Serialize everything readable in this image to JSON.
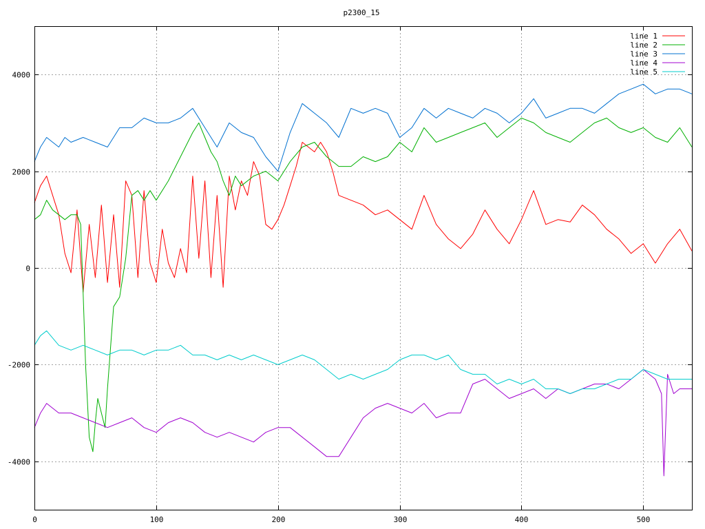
{
  "chart_data": {
    "type": "line",
    "title": "p2300_15",
    "xlabel": "",
    "ylabel": "",
    "xlim": [
      0,
      540
    ],
    "ylim": [
      -5000,
      5000
    ],
    "grid": true,
    "legend_position": "top-right",
    "x_ticks": [
      0,
      100,
      200,
      300,
      400,
      500
    ],
    "y_ticks": [
      -4000,
      -2000,
      0,
      2000,
      4000
    ],
    "x_tick_labels": [
      "0",
      "100",
      "200",
      "300",
      "400",
      "500"
    ],
    "y_tick_labels": [
      "-4000",
      "-2000",
      "0",
      "2000",
      "4000"
    ],
    "series": [
      {
        "name": "line 1",
        "color": "#ff0000",
        "x": [
          0,
          5,
          10,
          15,
          20,
          25,
          30,
          35,
          40,
          45,
          50,
          55,
          60,
          65,
          70,
          75,
          80,
          85,
          90,
          95,
          100,
          105,
          110,
          115,
          120,
          125,
          130,
          135,
          140,
          145,
          150,
          155,
          160,
          165,
          170,
          175,
          180,
          185,
          190,
          195,
          200,
          205,
          210,
          215,
          220,
          225,
          230,
          235,
          240,
          245,
          250,
          260,
          270,
          280,
          290,
          300,
          310,
          320,
          330,
          340,
          350,
          360,
          370,
          380,
          390,
          400,
          410,
          420,
          430,
          440,
          450,
          460,
          470,
          480,
          490,
          500,
          510,
          520,
          530,
          540
        ],
        "values": [
          1350,
          1700,
          1900,
          1500,
          1100,
          300,
          -100,
          1200,
          -500,
          900,
          -200,
          1300,
          -300,
          1100,
          -400,
          1800,
          1500,
          -200,
          1600,
          100,
          -300,
          800,
          100,
          -200,
          400,
          -100,
          1900,
          200,
          1800,
          -200,
          1500,
          -400,
          1900,
          1200,
          1800,
          1500,
          2200,
          1900,
          900,
          800,
          1000,
          1300,
          1700,
          2100,
          2600,
          2500,
          2400,
          2600,
          2400,
          2000,
          1500,
          1400,
          1300,
          1100,
          1200,
          1000,
          800,
          1500,
          900,
          600,
          400,
          700,
          1200,
          800,
          500,
          1000,
          1600,
          900,
          1000,
          950,
          1300,
          1100,
          800,
          600,
          300,
          500,
          100,
          500,
          800,
          350
        ]
      },
      {
        "name": "line 2",
        "color": "#00b000",
        "x": [
          0,
          5,
          10,
          15,
          20,
          25,
          30,
          35,
          38,
          40,
          42,
          45,
          48,
          50,
          52,
          55,
          58,
          60,
          65,
          70,
          75,
          80,
          85,
          90,
          95,
          100,
          110,
          120,
          130,
          135,
          140,
          145,
          150,
          155,
          160,
          165,
          170,
          180,
          190,
          200,
          210,
          220,
          230,
          240,
          250,
          260,
          270,
          280,
          290,
          300,
          310,
          320,
          330,
          340,
          350,
          360,
          370,
          380,
          390,
          400,
          410,
          420,
          430,
          440,
          450,
          460,
          470,
          480,
          490,
          500,
          510,
          520,
          530,
          540
        ],
        "values": [
          1000,
          1100,
          1400,
          1200,
          1100,
          1000,
          1100,
          1100,
          900,
          -500,
          -2000,
          -3500,
          -3800,
          -3200,
          -2700,
          -3000,
          -3300,
          -2500,
          -800,
          -600,
          200,
          1500,
          1600,
          1400,
          1600,
          1400,
          1800,
          2300,
          2800,
          3000,
          2700,
          2400,
          2200,
          1800,
          1500,
          1900,
          1700,
          1900,
          2000,
          1800,
          2200,
          2500,
          2600,
          2300,
          2100,
          2100,
          2300,
          2200,
          2300,
          2600,
          2400,
          2900,
          2600,
          2700,
          2800,
          2900,
          3000,
          2700,
          2900,
          3100,
          3000,
          2800,
          2700,
          2600,
          2800,
          3000,
          3100,
          2900,
          2800,
          2900,
          2700,
          2600,
          2900,
          2500
        ]
      },
      {
        "name": "line 3",
        "color": "#0070d0",
        "x": [
          0,
          5,
          10,
          15,
          20,
          25,
          30,
          40,
          50,
          60,
          70,
          80,
          90,
          100,
          110,
          120,
          130,
          140,
          150,
          160,
          170,
          180,
          190,
          200,
          210,
          220,
          225,
          230,
          240,
          250,
          260,
          270,
          280,
          290,
          300,
          310,
          320,
          330,
          340,
          350,
          360,
          370,
          380,
          390,
          400,
          410,
          420,
          430,
          440,
          450,
          460,
          470,
          480,
          490,
          500,
          510,
          520,
          530,
          540
        ],
        "values": [
          2200,
          2500,
          2700,
          2600,
          2500,
          2700,
          2600,
          2700,
          2600,
          2500,
          2900,
          2900,
          3100,
          3000,
          3000,
          3100,
          3300,
          2900,
          2500,
          3000,
          2800,
          2700,
          2300,
          2000,
          2800,
          3400,
          3300,
          3200,
          3000,
          2700,
          3300,
          3200,
          3300,
          3200,
          2700,
          2900,
          3300,
          3100,
          3300,
          3200,
          3100,
          3300,
          3200,
          3000,
          3200,
          3500,
          3100,
          3200,
          3300,
          3300,
          3200,
          3400,
          3600,
          3700,
          3800,
          3600,
          3700,
          3700,
          3600
        ]
      },
      {
        "name": "line 4",
        "color": "#a000d0",
        "x": [
          0,
          5,
          10,
          20,
          30,
          40,
          50,
          60,
          70,
          80,
          90,
          100,
          110,
          120,
          130,
          140,
          150,
          160,
          170,
          180,
          190,
          200,
          210,
          220,
          230,
          240,
          250,
          260,
          270,
          280,
          290,
          300,
          310,
          320,
          330,
          340,
          350,
          360,
          370,
          380,
          390,
          400,
          410,
          420,
          430,
          440,
          450,
          460,
          470,
          480,
          490,
          500,
          510,
          515,
          517,
          520,
          525,
          530,
          540
        ],
        "values": [
          -3300,
          -3000,
          -2800,
          -3000,
          -3000,
          -3100,
          -3200,
          -3300,
          -3200,
          -3100,
          -3300,
          -3400,
          -3200,
          -3100,
          -3200,
          -3400,
          -3500,
          -3400,
          -3500,
          -3600,
          -3400,
          -3300,
          -3300,
          -3500,
          -3700,
          -3900,
          -3900,
          -3500,
          -3100,
          -2900,
          -2800,
          -2900,
          -3000,
          -2800,
          -3100,
          -3000,
          -3000,
          -2400,
          -2300,
          -2500,
          -2700,
          -2600,
          -2500,
          -2700,
          -2500,
          -2600,
          -2500,
          -2400,
          -2400,
          -2500,
          -2300,
          -2100,
          -2300,
          -2600,
          -4300,
          -2200,
          -2600,
          -2500,
          -2500
        ]
      },
      {
        "name": "line 5",
        "color": "#00cccc",
        "x": [
          0,
          5,
          10,
          20,
          30,
          40,
          50,
          60,
          70,
          80,
          90,
          100,
          110,
          120,
          130,
          140,
          150,
          160,
          170,
          180,
          190,
          200,
          210,
          220,
          230,
          240,
          250,
          260,
          270,
          280,
          290,
          300,
          310,
          320,
          330,
          340,
          350,
          360,
          370,
          380,
          390,
          400,
          410,
          420,
          430,
          440,
          450,
          460,
          470,
          480,
          490,
          500,
          510,
          520,
          530,
          540
        ],
        "values": [
          -1600,
          -1400,
          -1300,
          -1600,
          -1700,
          -1600,
          -1700,
          -1800,
          -1700,
          -1700,
          -1800,
          -1700,
          -1700,
          -1600,
          -1800,
          -1800,
          -1900,
          -1800,
          -1900,
          -1800,
          -1900,
          -2000,
          -1900,
          -1800,
          -1900,
          -2100,
          -2300,
          -2200,
          -2300,
          -2200,
          -2100,
          -1900,
          -1800,
          -1800,
          -1900,
          -1800,
          -2100,
          -2200,
          -2200,
          -2400,
          -2300,
          -2400,
          -2300,
          -2500,
          -2500,
          -2600,
          -2500,
          -2500,
          -2400,
          -2300,
          -2300,
          -2100,
          -2200,
          -2300,
          -2300,
          -2300
        ]
      }
    ]
  }
}
